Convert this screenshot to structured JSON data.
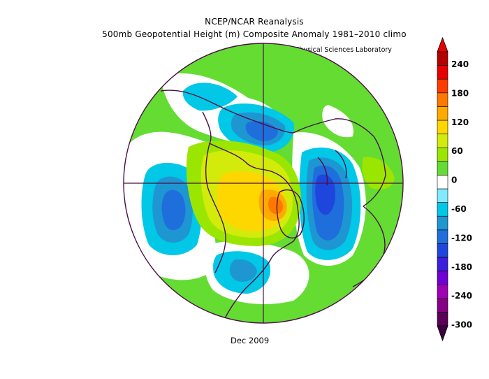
{
  "title_line1": "NCEP/NCAR Reanalysis",
  "title_line2": "500mb Geopotential Height (m) Composite Anomaly 1981–2010 climo",
  "credit": "NOAA Physical Sciences Laboratory",
  "date_label": "Dec 2009",
  "colorbar": {
    "ticks": [
      "240",
      "180",
      "120",
      "60",
      "0",
      "-60",
      "-120",
      "-180",
      "-240",
      "-300"
    ],
    "colors": [
      "#5a0058",
      "#860086",
      "#a000b4",
      "#6e00d2",
      "#3c1edc",
      "#1e46dc",
      "#1e6edc",
      "#1e96d2",
      "#00c8e6",
      "#82eaff",
      "#ffffff",
      "#64dc32",
      "#9be600",
      "#d2eb0a",
      "#ffd700",
      "#ffaa00",
      "#ff7800",
      "#ff3c00",
      "#e60000",
      "#b40000"
    ],
    "top_arrow_color": "#e60000",
    "bottom_arrow_color": "#3c0040"
  },
  "map": {
    "background_color": "#64dc32",
    "projection": "north-polar-stereographic",
    "coast_color": "#4b0f46"
  }
}
